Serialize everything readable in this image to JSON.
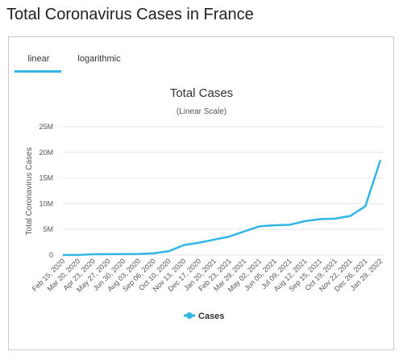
{
  "page": {
    "title": "Total Coronavirus Cases in France",
    "tabs": [
      "linear",
      "logarithmic"
    ]
  },
  "chart_data": {
    "type": "line",
    "title": "Total Cases",
    "subtitle": "(Linear Scale)",
    "y_label": "Total Coronavirus Cases",
    "categories": [
      "Feb 15, 2020",
      "Mar 20, 2020",
      "Apr 23, 2020",
      "May 27, 2020",
      "Jun 30, 2020",
      "Aug 03, 2020",
      "Sep 06, 2020",
      "Oct 10, 2020",
      "Nov 13, 2020",
      "Dec 17, 2020",
      "Jan 20, 2021",
      "Feb 23, 2021",
      "Mar 29, 2021",
      "May 02, 2021",
      "Jun 05, 2021",
      "Jul 09, 2021",
      "Aug 12, 2021",
      "Sep 15, 2021",
      "Oct 19, 2021",
      "Nov 22, 2021",
      "Dec 26, 2021",
      "Jan 29, 2022"
    ],
    "series": [
      {
        "name": "Cases",
        "color": "#33b5e5",
        "values": [
          0,
          10000,
          160000,
          180000,
          200000,
          220000,
          330000,
          740000,
          1950000,
          2400000,
          3000000,
          3600000,
          4600000,
          5600000,
          5800000,
          5900000,
          6600000,
          7000000,
          7100000,
          7600000,
          9500000,
          18500000
        ]
      }
    ],
    "ylim": [
      0,
      25000000
    ],
    "yticks": [
      0,
      {
        "value": 5000000,
        "label": "5M"
      },
      {
        "value": 10000000,
        "label": "10M"
      },
      {
        "value": 15000000,
        "label": "15M"
      },
      {
        "value": 20000000,
        "label": "20M"
      },
      {
        "value": 25000000,
        "label": "25M"
      }
    ],
    "grid": true,
    "legend": "bottom"
  }
}
